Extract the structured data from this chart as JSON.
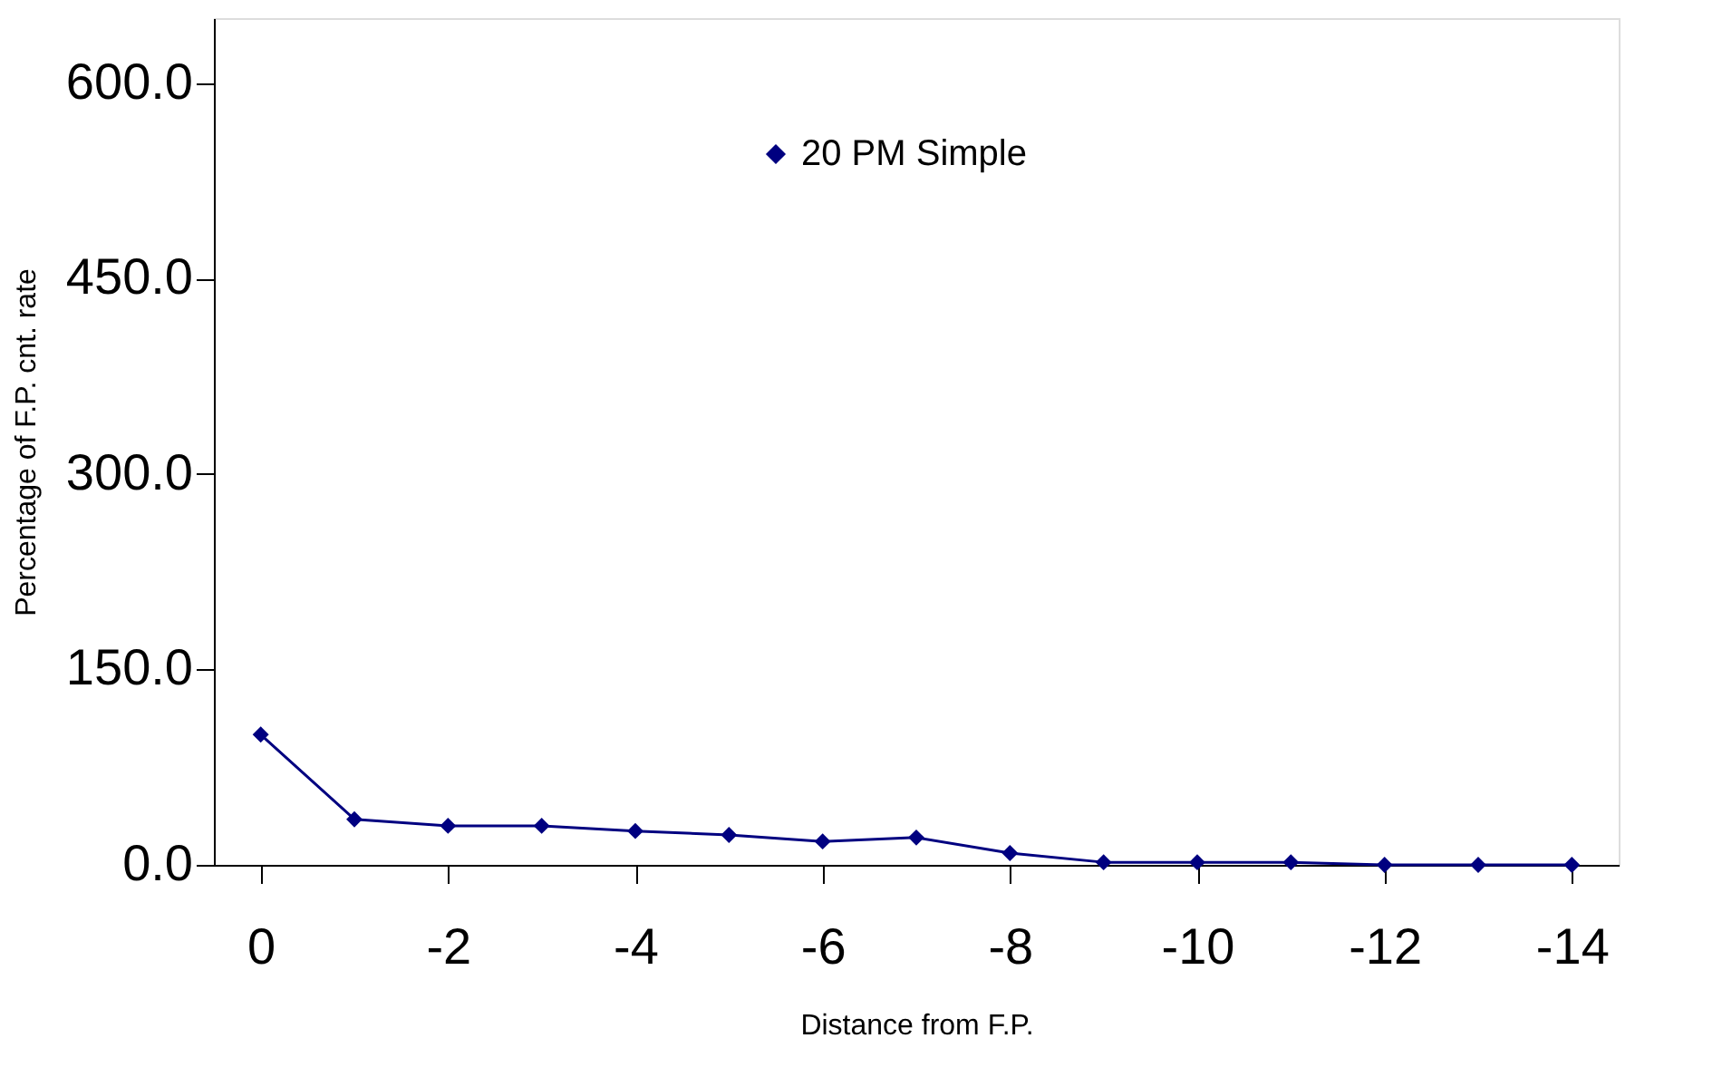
{
  "chart_data": {
    "type": "line",
    "xlabel": "Distance from F.P.",
    "ylabel": "Percentage of F.P. cnt. rate",
    "x": [
      0,
      -1,
      -2,
      -3,
      -4,
      -5,
      -6,
      -7,
      -8,
      -9,
      -10,
      -11,
      -12,
      -13,
      -14
    ],
    "series": [
      {
        "name": "20 PM Simple",
        "color": "#000080",
        "values": [
          100,
          35,
          30,
          30,
          26,
          23,
          18,
          21,
          9,
          2,
          2,
          2,
          0,
          0,
          0
        ]
      }
    ],
    "xlim": [
      0.5,
      -14.5
    ],
    "xticks": [
      0,
      -2,
      -4,
      -6,
      -8,
      -10,
      -12,
      -14
    ],
    "ylim": [
      0,
      650
    ],
    "yticks": [
      {
        "value": 0,
        "label": "0.0"
      },
      {
        "value": 150,
        "label": "150.0"
      },
      {
        "value": 300,
        "label": "300.0"
      },
      {
        "value": 450,
        "label": "450.0"
      },
      {
        "value": 600,
        "label": "600.0"
      }
    ],
    "marker": "diamond",
    "line_style": "solid",
    "grid": false,
    "legend": "top"
  }
}
